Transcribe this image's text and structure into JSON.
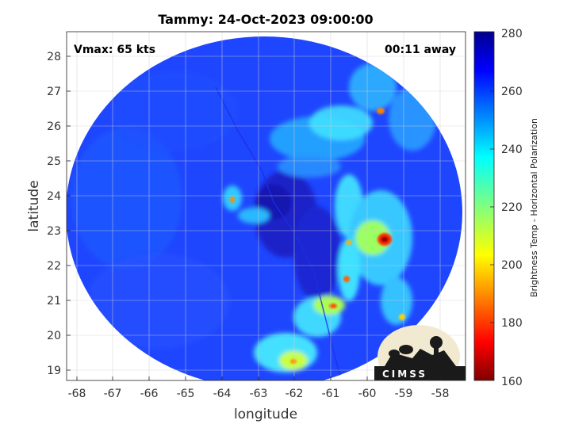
{
  "title": "Tammy: 24-Oct-2023 09:00:00",
  "vmax_label": "Vmax: 65 kts",
  "time_offset_label": "00:11 away",
  "xlabel": "longitude",
  "ylabel": "latitude",
  "x_ticks": [
    "-68",
    "-67",
    "-66",
    "-65",
    "-64",
    "-63",
    "-62",
    "-61",
    "-60",
    "-59",
    "-58"
  ],
  "y_ticks": [
    "28",
    "27",
    "26",
    "25",
    "24",
    "23",
    "22",
    "21",
    "20",
    "19"
  ],
  "colorbar": {
    "label": "Brightness Temp - Horizontal Polarization",
    "ticks": [
      "280",
      "260",
      "240",
      "220",
      "200",
      "180",
      "160"
    ],
    "range": [
      160,
      280
    ],
    "colormap": "jet"
  },
  "logo_text": "CIMSS",
  "colors": {
    "background_blue": "#1f3cff",
    "warm_core": "#2a18c8",
    "cold_cloud": "#e01e00",
    "frame": "#222222"
  }
}
